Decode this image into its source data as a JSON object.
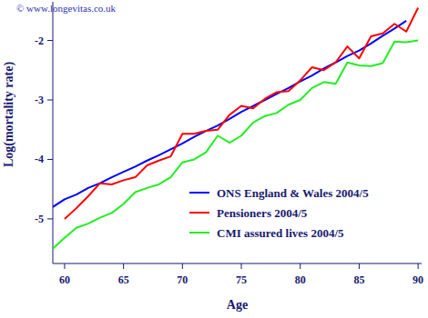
{
  "chart_data": {
    "type": "line",
    "annotation": "© www.longevitas.co.uk",
    "x_label": "Age",
    "y_label": "Log(mortality rate)",
    "x": [
      59,
      60,
      61,
      62,
      63,
      64,
      65,
      66,
      67,
      68,
      69,
      70,
      71,
      72,
      73,
      74,
      75,
      76,
      77,
      78,
      79,
      80,
      81,
      82,
      83,
      84,
      85,
      86,
      87,
      88,
      89,
      90
    ],
    "series": [
      {
        "name": "ONS England & Wales 2004/5",
        "color": "#0000ff",
        "values": [
          -4.8,
          -4.67,
          -4.59,
          -4.48,
          -4.4,
          -4.3,
          -4.21,
          -4.12,
          -4.02,
          -3.93,
          -3.83,
          -3.73,
          -3.62,
          -3.52,
          -3.43,
          -3.32,
          -3.2,
          -3.1,
          -3.0,
          -2.9,
          -2.8,
          -2.69,
          -2.59,
          -2.47,
          -2.37,
          -2.26,
          -2.17,
          -2.05,
          -1.92,
          -1.8,
          -1.67,
          null
        ]
      },
      {
        "name": "Pensioners 2004/5",
        "color": "#ff0000",
        "values": [
          null,
          -5.0,
          -4.82,
          -4.62,
          -4.4,
          -4.42,
          -4.35,
          -4.3,
          -4.1,
          -4.02,
          -3.95,
          -3.57,
          -3.57,
          -3.52,
          -3.5,
          -3.25,
          -3.1,
          -3.14,
          -2.98,
          -2.87,
          -2.85,
          -2.67,
          -2.45,
          -2.5,
          -2.37,
          -2.1,
          -2.3,
          -1.93,
          -1.88,
          -1.72,
          -1.85,
          -1.45
        ]
      },
      {
        "name": "CMI assured lives 2004/5",
        "color": "#22ee22",
        "values": [
          -5.5,
          -5.32,
          -5.15,
          -5.08,
          -4.98,
          -4.9,
          -4.75,
          -4.55,
          -4.48,
          -4.42,
          -4.3,
          -4.05,
          -4.0,
          -3.88,
          -3.6,
          -3.72,
          -3.6,
          -3.38,
          -3.27,
          -3.22,
          -3.08,
          -3.0,
          -2.8,
          -2.7,
          -2.73,
          -2.37,
          -2.42,
          -2.43,
          -2.38,
          -2.02,
          -2.03,
          -2.0
        ]
      }
    ],
    "xlim": [
      59,
      90.3
    ],
    "ylim": [
      -5.75,
      -1.35
    ],
    "xticks": [
      60,
      65,
      70,
      75,
      80,
      85,
      90
    ],
    "yticks": [
      -5,
      -4,
      -3,
      -2
    ],
    "grid": false,
    "legend": "bottom-right"
  }
}
